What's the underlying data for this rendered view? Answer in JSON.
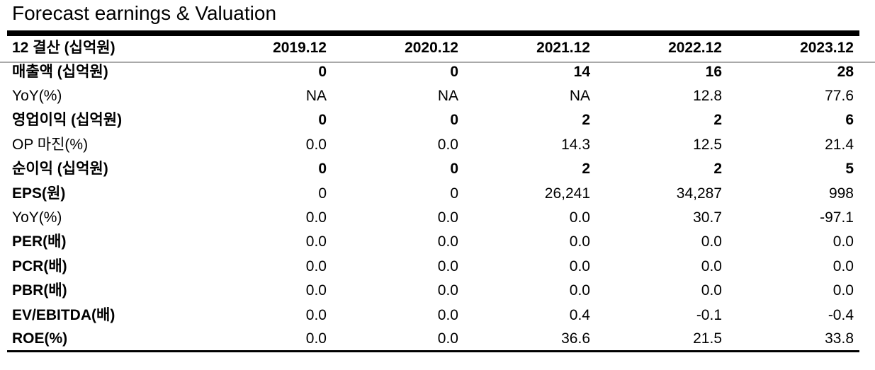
{
  "title": "Forecast earnings & Valuation",
  "table": {
    "header": {
      "label": "12 결산 (십억원)",
      "periods": [
        "2019.12",
        "2020.12",
        "2021.12",
        "2022.12",
        "2023.12"
      ]
    },
    "rows": [
      {
        "label": "매출액 (십억원)",
        "values": [
          "0",
          "0",
          "14",
          "16",
          "28"
        ],
        "bold_label": true,
        "bold_values": true
      },
      {
        "label": "YoY(%)",
        "values": [
          "NA",
          "NA",
          "NA",
          "12.8",
          "77.6"
        ],
        "bold_label": false,
        "bold_values": false
      },
      {
        "label": "영업이익 (십억원)",
        "values": [
          "0",
          "0",
          "2",
          "2",
          "6"
        ],
        "bold_label": true,
        "bold_values": true
      },
      {
        "label": "OP 마진(%)",
        "values": [
          "0.0",
          "0.0",
          "14.3",
          "12.5",
          "21.4"
        ],
        "bold_label": false,
        "bold_values": false
      },
      {
        "label": "순이익 (십억원)",
        "values": [
          "0",
          "0",
          "2",
          "2",
          "5"
        ],
        "bold_label": true,
        "bold_values": true
      },
      {
        "label": "EPS(원)",
        "values": [
          "0",
          "0",
          "26,241",
          "34,287",
          "998"
        ],
        "bold_label": true,
        "bold_values": false
      },
      {
        "label": "YoY(%)",
        "values": [
          "0.0",
          "0.0",
          "0.0",
          "30.7",
          "-97.1"
        ],
        "bold_label": false,
        "bold_values": false
      },
      {
        "label": "PER(배)",
        "values": [
          "0.0",
          "0.0",
          "0.0",
          "0.0",
          "0.0"
        ],
        "bold_label": true,
        "bold_values": false
      },
      {
        "label": "PCR(배)",
        "values": [
          "0.0",
          "0.0",
          "0.0",
          "0.0",
          "0.0"
        ],
        "bold_label": true,
        "bold_values": false
      },
      {
        "label": "PBR(배)",
        "values": [
          "0.0",
          "0.0",
          "0.0",
          "0.0",
          "0.0"
        ],
        "bold_label": true,
        "bold_values": false
      },
      {
        "label": "EV/EBITDA(배)",
        "values": [
          "0.0",
          "0.0",
          "0.4",
          "-0.1",
          "-0.4"
        ],
        "bold_label": true,
        "bold_values": false
      },
      {
        "label": "ROE(%)",
        "values": [
          "0.0",
          "0.0",
          "36.6",
          "21.5",
          "33.8"
        ],
        "bold_label": true,
        "bold_values": false
      }
    ]
  }
}
